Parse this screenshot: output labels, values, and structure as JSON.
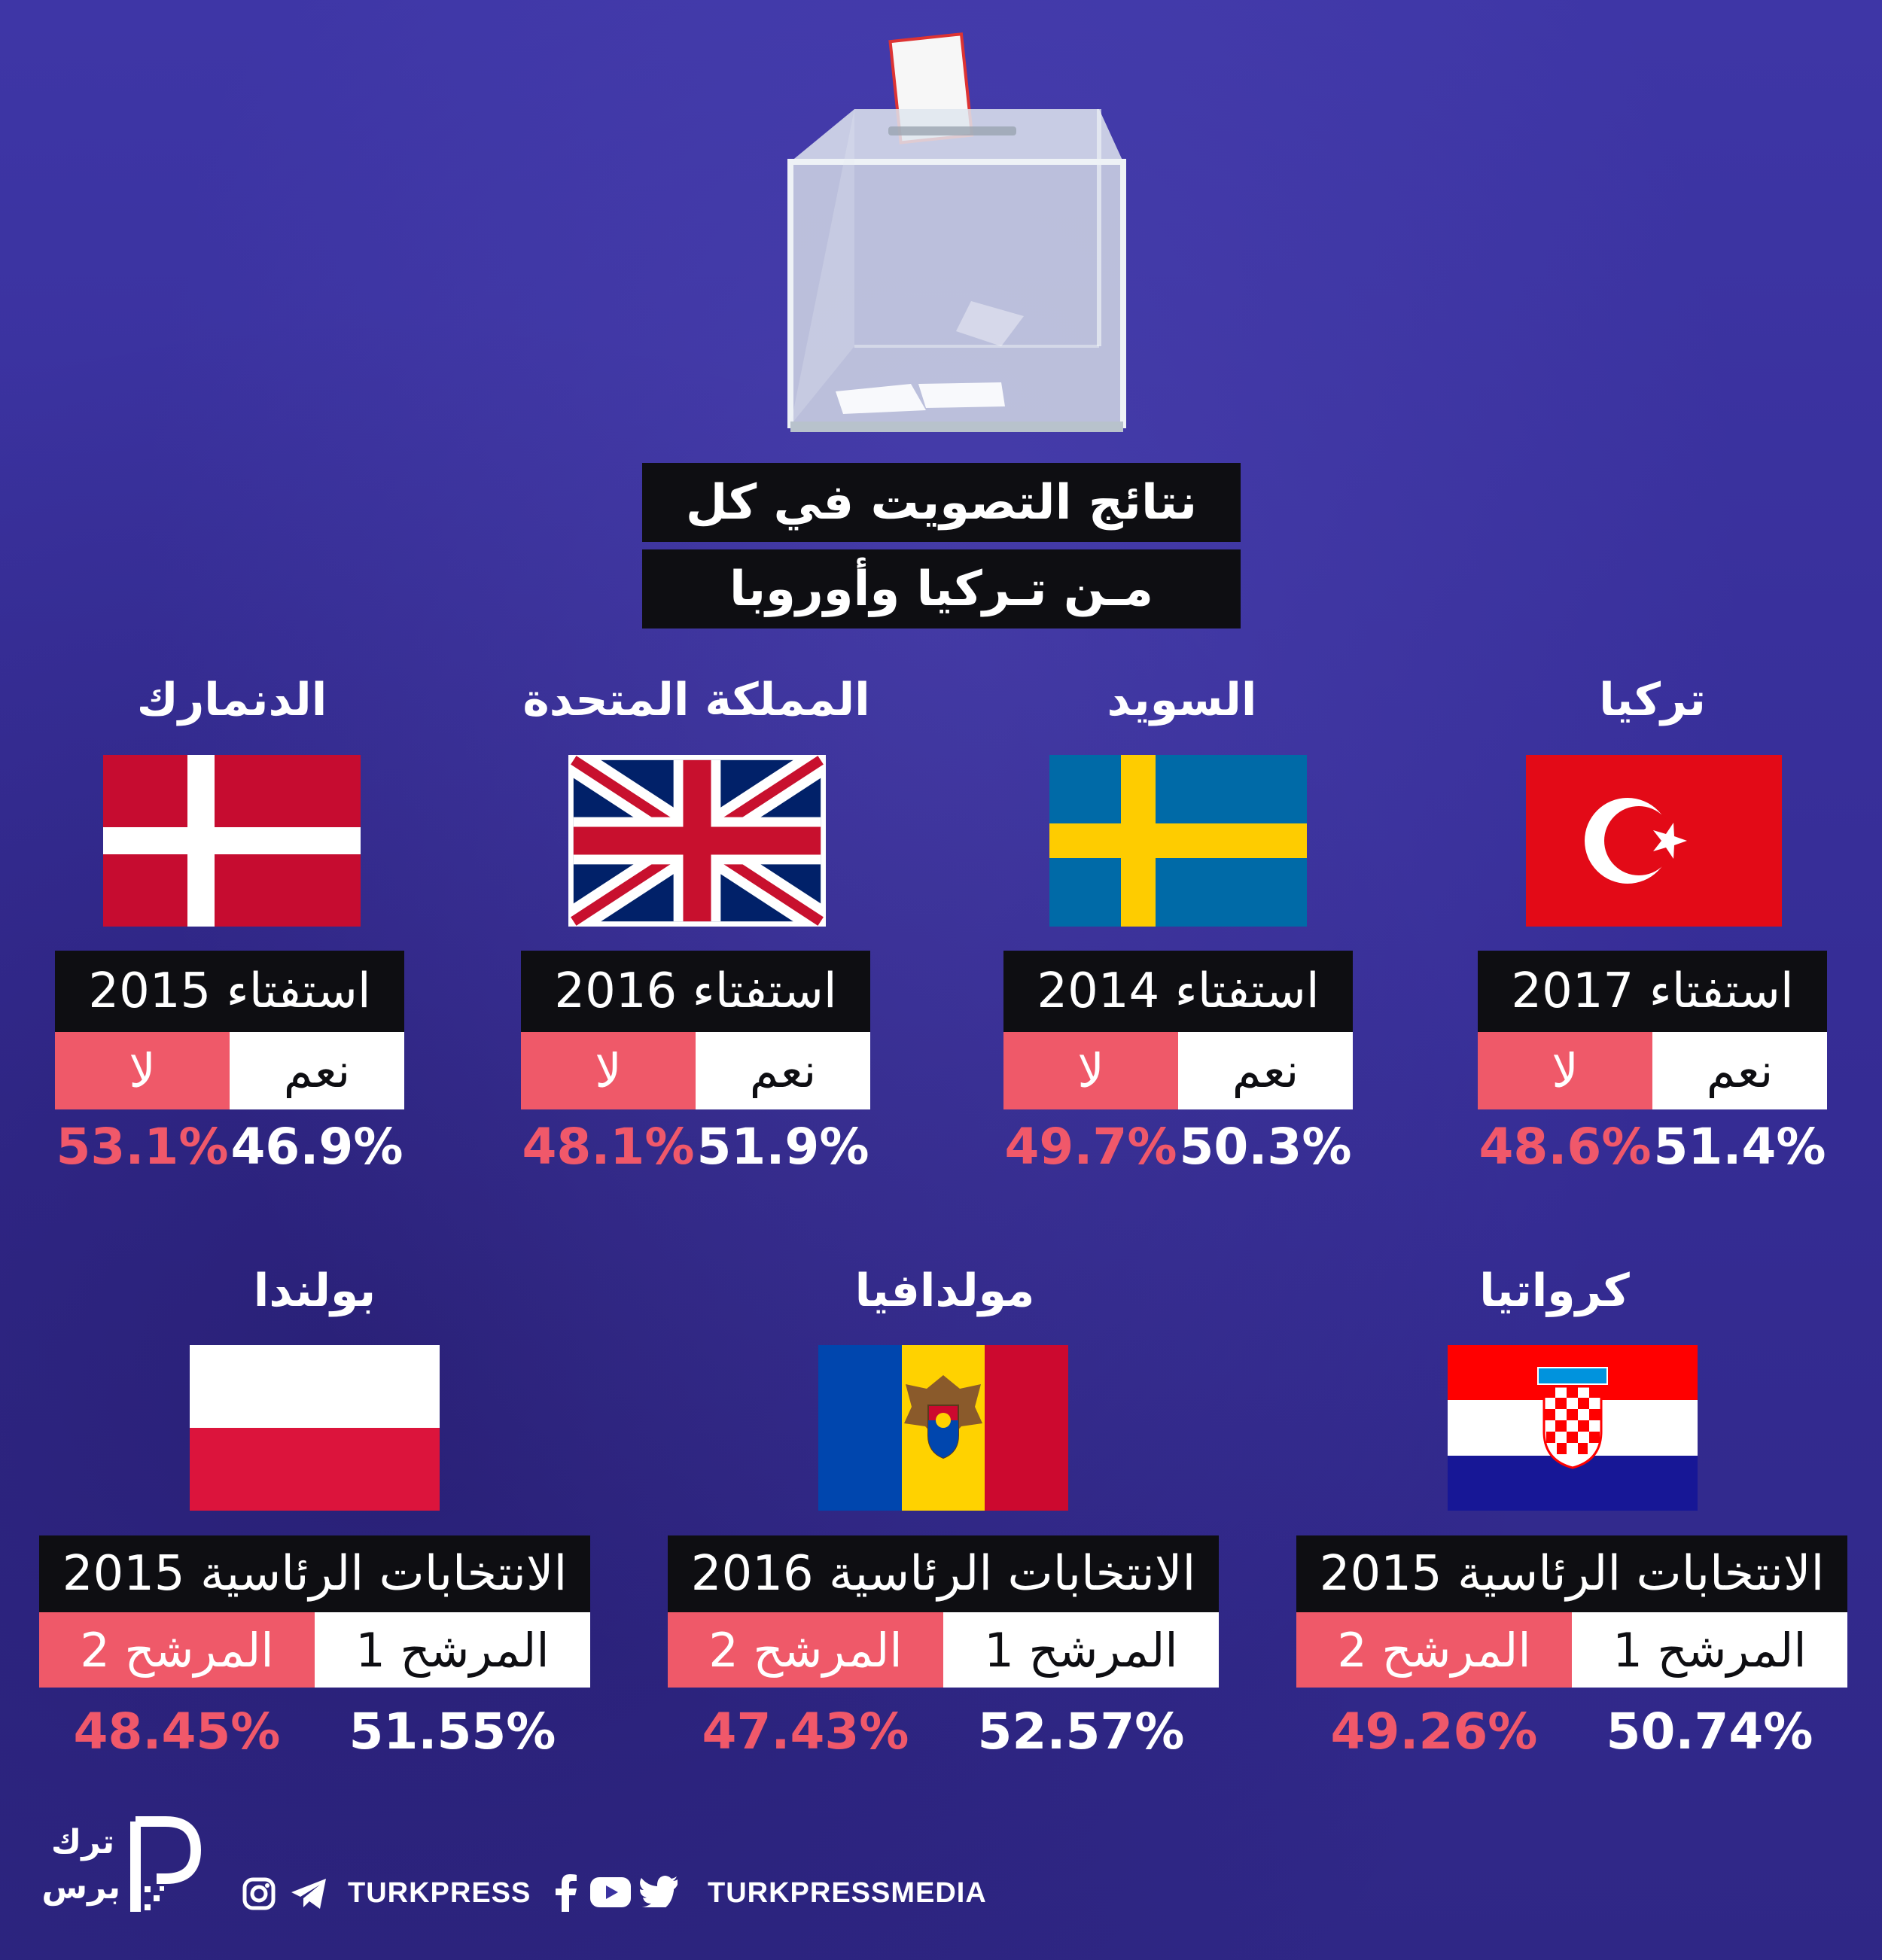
{
  "title": {
    "line1": "نتائج التصويت في كل",
    "line2": "مـن تـركيا وأوروبا"
  },
  "referendums": [
    {
      "country": "تركيا",
      "label": "استفتاء 2017",
      "yes_label": "نعم",
      "no_label": "لا",
      "yes_pct": "51.4%",
      "no_pct": "48.6%",
      "flag_icon": "turkey-flag-icon"
    },
    {
      "country": "السويد",
      "label": "استفتاء 2014",
      "yes_label": "نعم",
      "no_label": "لا",
      "yes_pct": "50.3%",
      "no_pct": "49.7%",
      "flag_icon": "sweden-flag-icon"
    },
    {
      "country": "المملكة المتحدة",
      "label": "استفتاء 2016",
      "yes_label": "نعم",
      "no_label": "لا",
      "yes_pct": "51.9%",
      "no_pct": "48.1%",
      "flag_icon": "uk-flag-icon"
    },
    {
      "country": "الدنمارك",
      "label": "استفتاء 2015",
      "yes_label": "نعم",
      "no_label": "لا",
      "yes_pct": "46.9%",
      "no_pct": "53.1%",
      "flag_icon": "denmark-flag-icon"
    }
  ],
  "elections": [
    {
      "country": "كرواتيا",
      "label": "الانتخابات الرئاسية 2015",
      "cand1_label": "المرشح 1",
      "cand2_label": "المرشح 2",
      "cand1_pct": "50.74%",
      "cand2_pct": "49.26%",
      "flag_icon": "croatia-flag-icon"
    },
    {
      "country": "مولدافيا",
      "label": "الانتخابات الرئاسية 2016",
      "cand1_label": "المرشح 1",
      "cand2_label": "المرشح 2",
      "cand1_pct": "52.57%",
      "cand2_pct": "47.43%",
      "flag_icon": "moldova-flag-icon"
    },
    {
      "country": "بولندا",
      "label": "الانتخابات الرئاسية 2015",
      "cand1_label": "المرشح 1",
      "cand2_label": "المرشح 2",
      "cand1_pct": "51.55%",
      "cand2_pct": "48.45%",
      "flag_icon": "poland-flag-icon"
    }
  ],
  "footer": {
    "logo_line1": "ترك",
    "logo_line2": "برس",
    "handle1": "TURKPRESS",
    "handle2": "TURKPRESSMEDIA",
    "icons": [
      "instagram-icon",
      "telegram-icon",
      "facebook-icon",
      "youtube-icon",
      "twitter-icon"
    ]
  },
  "colors": {
    "background": "#3b33a0",
    "no_red": "#ef5969",
    "box_black": "#0e0e12"
  }
}
